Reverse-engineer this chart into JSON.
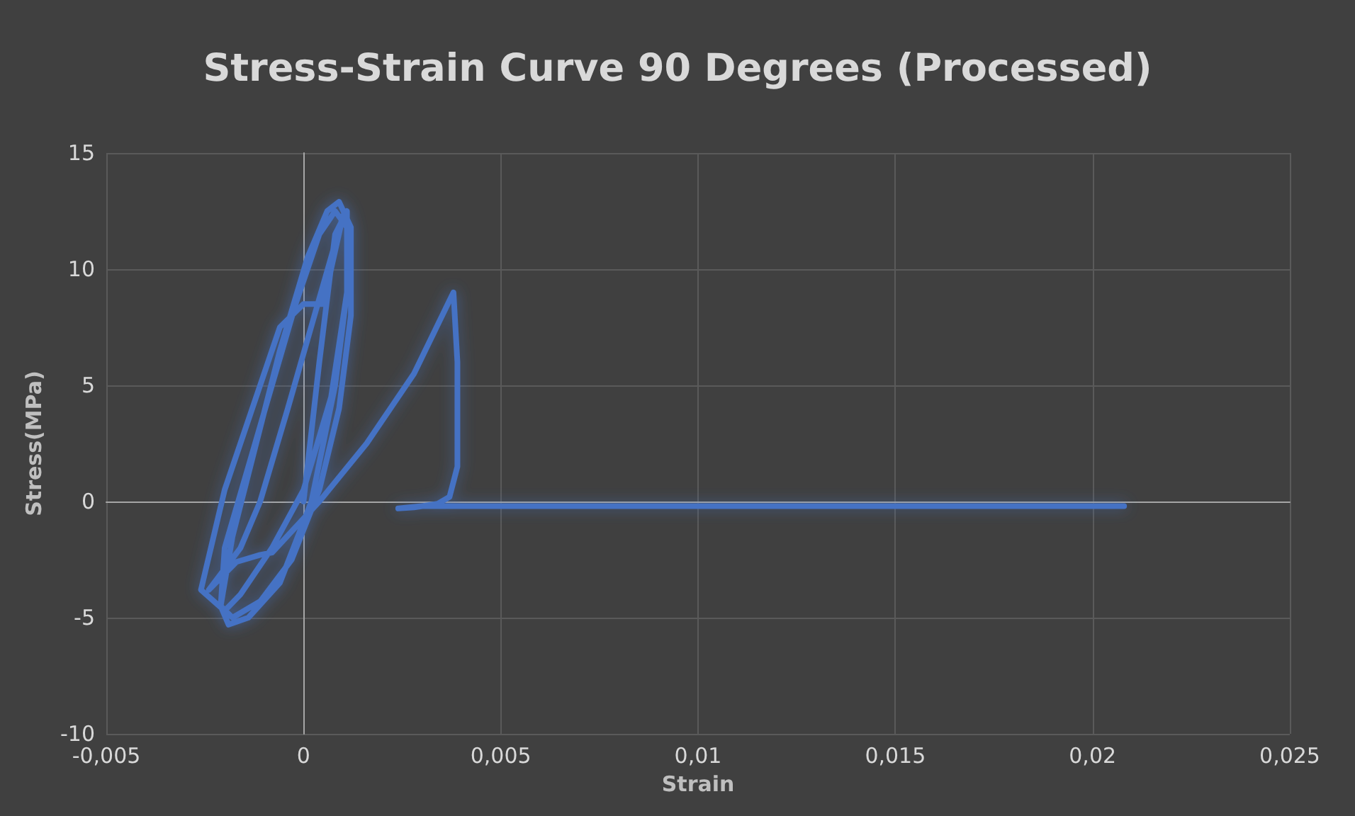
{
  "chart_data": {
    "type": "line",
    "title": "Stress-Strain Curve 90 Degrees (Processed)",
    "xlabel": "Strain",
    "ylabel": "Stress(MPa)",
    "xlim": [
      -0.005,
      0.025
    ],
    "xticks": [
      {
        "value": -0.005,
        "label": "-0,005"
      },
      {
        "value": 0,
        "label": "0"
      },
      {
        "value": 0.005,
        "label": "0,005"
      },
      {
        "value": 0.01,
        "label": "0,01"
      },
      {
        "value": 0.015,
        "label": "0,015"
      },
      {
        "value": 0.02,
        "label": "0,02"
      },
      {
        "value": 0.025,
        "label": "0,025"
      }
    ],
    "ylim": [
      -10,
      15
    ],
    "yticks": [
      -10,
      -5,
      0,
      5,
      10,
      15
    ],
    "grid": true,
    "marker": "none",
    "line_style": "solid",
    "series": [
      {
        "color": "#4472c4",
        "x": [
          0,
          0.0004,
          0.0008,
          0.0011,
          0.0011,
          0.0008,
          0.0002,
          -0.0006,
          -0.0014,
          -0.0019,
          -0.0021,
          -0.0018,
          -0.0012,
          -0.0006,
          0.0001,
          0.0006,
          0.0009,
          0.0012,
          0.0012,
          0.0009,
          0.0004,
          -0.0003,
          -0.0011,
          -0.0018,
          -0.0021,
          -0.002,
          -0.0014,
          -0.0008,
          -0.0002,
          0.0004,
          0.0008,
          0.0011,
          0.0011,
          0.0007,
          0,
          -0.0008,
          -0.0016,
          -0.002,
          -0.0026,
          -0.002,
          -0.0013,
          -0.0006,
          0,
          0.0005,
          0.001,
          -0.0004,
          -0.0011,
          -0.0016,
          -0.0024,
          -0.0017,
          -0.0011,
          -0.0008,
          0.0004,
          0.0016,
          0.0028,
          0.0038,
          0.0039,
          0.0039,
          0.0037,
          0.0034,
          0.0028,
          0.0024,
          0.003,
          0.008,
          0.014,
          0.0208
        ],
        "values": [
          0,
          6,
          11.5,
          12.5,
          9,
          5,
          0,
          -3.5,
          -5,
          -5.3,
          -4.5,
          -1.5,
          2.5,
          6.5,
          10.5,
          12.5,
          12.9,
          11.8,
          8,
          4,
          0.5,
          -2.5,
          -4.3,
          -5,
          -4.5,
          -2,
          1.5,
          5,
          8.5,
          11.5,
          12.5,
          11.8,
          9,
          4.5,
          0.5,
          -2,
          -4,
          -4.7,
          -3.8,
          0.5,
          4,
          7.5,
          8.5,
          8.5,
          12.3,
          4,
          0,
          -2,
          -3.8,
          -2.6,
          -2.3,
          -2.2,
          0,
          2.5,
          5.5,
          9,
          6,
          1.5,
          0.2,
          -0.1,
          -0.25,
          -0.3,
          -0.2,
          -0.2,
          -0.2,
          -0.2
        ]
      }
    ]
  }
}
